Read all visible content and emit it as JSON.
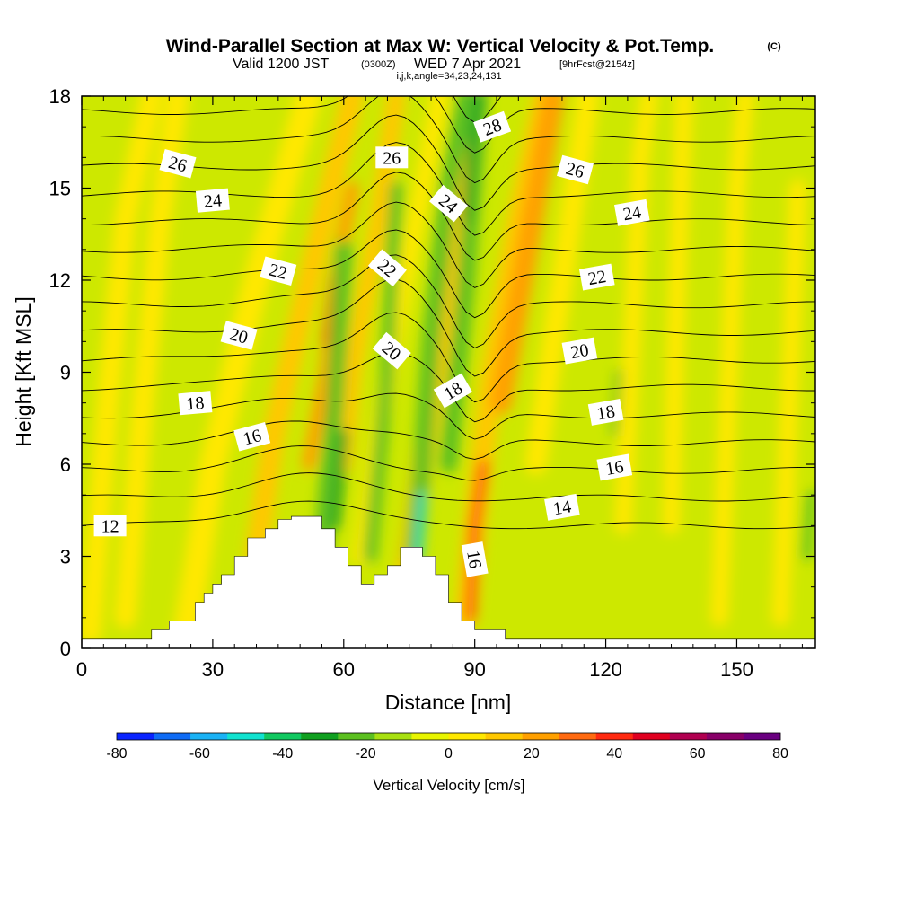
{
  "header": {
    "title": "Wind-Parallel Section at Max W: Vertical Velocity & Pot.Temp.",
    "copyright": "(C)",
    "valid_prefix": "Valid 1200 JST",
    "valid_utc": "(0300Z)",
    "valid_date": "WED 7 Apr 2021",
    "forecast": "[9hrFcst@2154z]",
    "indices": "i,j,k,angle=34,23,24,131"
  },
  "colorbar": {
    "label": "Vertical Velocity [cm/s]",
    "ticks": [
      "-80",
      "-60",
      "-40",
      "-20",
      "0",
      "20",
      "40",
      "60",
      "80"
    ],
    "colors": [
      "#0a24ff",
      "#0f6cf5",
      "#1ab2f5",
      "#10e2cf",
      "#10c860",
      "#10a020",
      "#5cc020",
      "#a8e010",
      "#e8f500",
      "#ffe800",
      "#ffc800",
      "#ffa000",
      "#ff6a10",
      "#ff2a10",
      "#e00020",
      "#b00050",
      "#880068",
      "#6a0080"
    ]
  },
  "chart_data": {
    "type": "heatmap",
    "title": "Wind-Parallel Section at Max W: Vertical Velocity & Pot.Temp.",
    "xlabel": "Distance [nm]",
    "ylabel": "Height [Kft MSL]",
    "xlim": [
      0,
      168
    ],
    "ylim": [
      0,
      18
    ],
    "x_ticks": [
      "0",
      "30",
      "60",
      "90",
      "120",
      "150"
    ],
    "y_ticks": [
      "0",
      "3",
      "6",
      "9",
      "12",
      "15",
      "18"
    ],
    "color_variable": "Vertical Velocity [cm/s]",
    "contour_variable": "Pot.Temp.",
    "contour_levels": [
      12,
      13,
      14,
      15,
      16,
      17,
      18,
      19,
      20,
      21,
      22,
      23,
      24,
      25,
      26,
      27,
      28
    ],
    "contour_labels": [
      {
        "text": "12",
        "x": 6.5,
        "y": 4.0,
        "angle": 0
      },
      {
        "text": "16",
        "x": 39,
        "y": 6.9,
        "angle": -15
      },
      {
        "text": "18",
        "x": 26,
        "y": 8.0,
        "angle": -5
      },
      {
        "text": "20",
        "x": 36,
        "y": 10.2,
        "angle": 15
      },
      {
        "text": "22",
        "x": 45,
        "y": 12.3,
        "angle": 15
      },
      {
        "text": "24",
        "x": 30,
        "y": 14.6,
        "angle": -5
      },
      {
        "text": "26",
        "x": 22,
        "y": 15.8,
        "angle": 15
      },
      {
        "text": "26",
        "x": 71,
        "y": 16.0,
        "angle": 0
      },
      {
        "text": "28",
        "x": 94,
        "y": 17.0,
        "angle": -20
      },
      {
        "text": "26",
        "x": 113,
        "y": 15.6,
        "angle": 15
      },
      {
        "text": "24",
        "x": 84,
        "y": 14.5,
        "angle": 40
      },
      {
        "text": "24",
        "x": 126,
        "y": 14.2,
        "angle": -10
      },
      {
        "text": "22",
        "x": 70,
        "y": 12.4,
        "angle": 40
      },
      {
        "text": "22",
        "x": 118,
        "y": 12.1,
        "angle": -10
      },
      {
        "text": "20",
        "x": 71,
        "y": 9.7,
        "angle": 40
      },
      {
        "text": "20",
        "x": 114,
        "y": 9.7,
        "angle": -10
      },
      {
        "text": "18",
        "x": 85,
        "y": 8.4,
        "angle": -30
      },
      {
        "text": "18",
        "x": 120,
        "y": 7.7,
        "angle": -10
      },
      {
        "text": "16",
        "x": 122,
        "y": 5.9,
        "angle": -10
      },
      {
        "text": "14",
        "x": 110,
        "y": 4.6,
        "angle": -10
      },
      {
        "text": "16",
        "x": 90,
        "y": 2.9,
        "angle": 80
      }
    ],
    "terrain_profile": {
      "x": [
        0,
        16,
        16,
        20,
        20,
        26,
        26,
        28,
        28,
        30,
        30,
        32,
        32,
        35,
        35,
        38,
        38,
        42,
        42,
        45,
        45,
        48,
        48,
        55,
        55,
        58,
        58,
        61,
        61,
        64,
        64,
        67,
        67,
        70,
        70,
        73,
        73,
        78,
        78,
        81,
        81,
        84,
        84,
        87,
        87,
        90,
        90,
        97,
        97,
        168
      ],
      "y": [
        0.3,
        0.3,
        0.6,
        0.6,
        0.9,
        0.9,
        1.5,
        1.5,
        1.8,
        1.8,
        2.1,
        2.1,
        2.4,
        2.4,
        3.0,
        3.0,
        3.6,
        3.6,
        3.9,
        3.9,
        4.2,
        4.2,
        4.3,
        4.3,
        3.9,
        3.9,
        3.3,
        3.3,
        2.7,
        2.7,
        2.1,
        2.1,
        2.4,
        2.4,
        2.7,
        2.7,
        3.3,
        3.3,
        3.0,
        3.0,
        2.4,
        2.4,
        1.5,
        1.5,
        0.9,
        0.9,
        0.6,
        0.6,
        0.3,
        0.3
      ]
    }
  }
}
